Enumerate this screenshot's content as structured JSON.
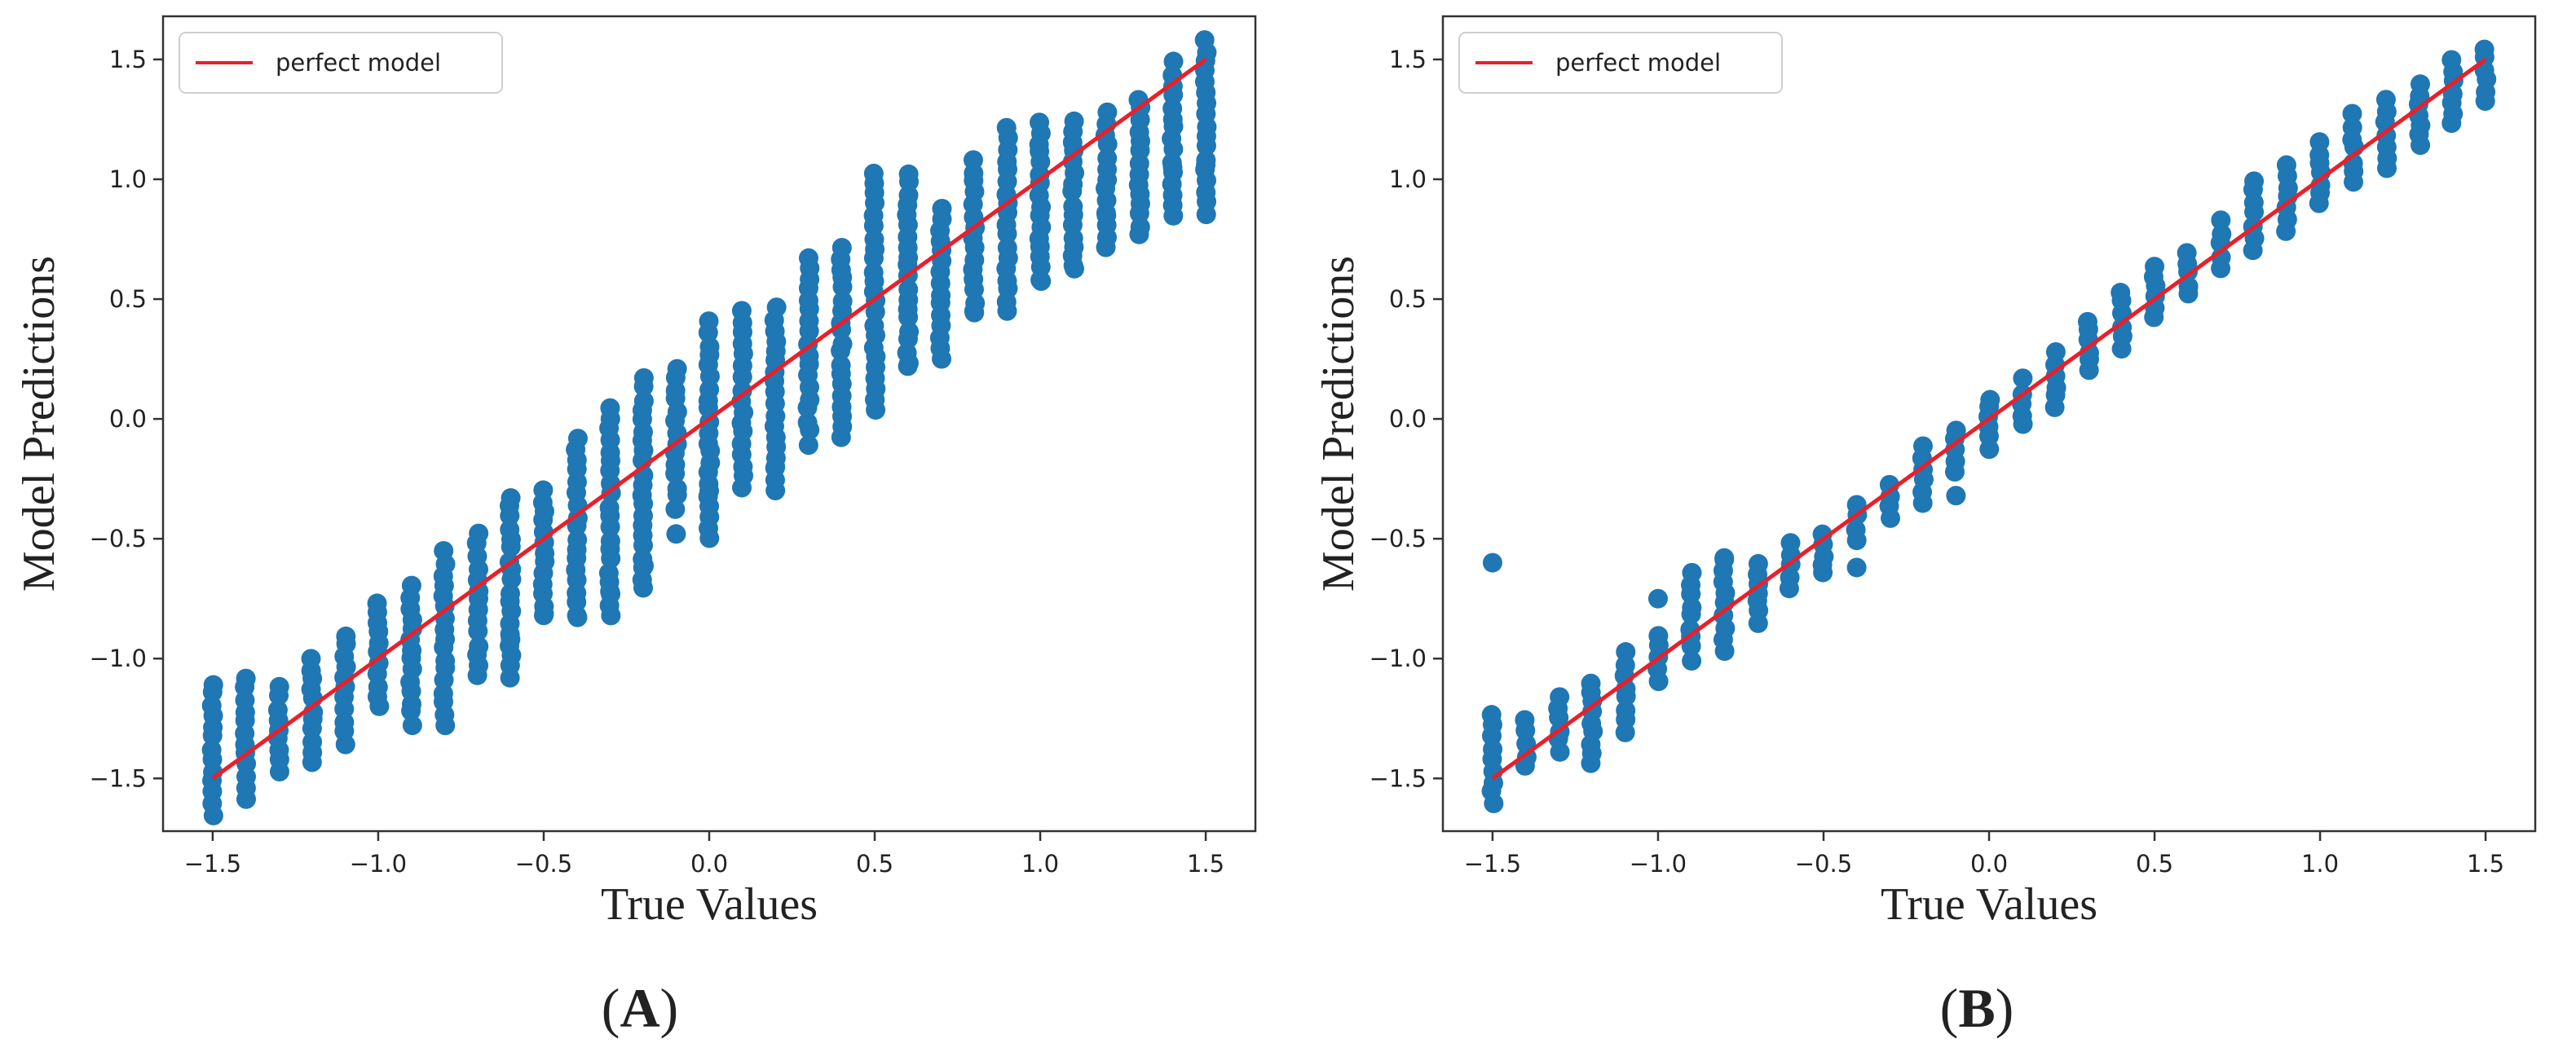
{
  "colors": {
    "points": "#1f77b4",
    "line": "#e8202a",
    "frame": "#333333"
  },
  "chart_data": [
    {
      "id": "A",
      "type": "scatter",
      "panel_label": "A",
      "xlabel": "True Values",
      "ylabel": "Model Predictions",
      "xlim": [
        -1.65,
        1.65
      ],
      "ylim": [
        -1.72,
        1.68
      ],
      "xticks": [
        -1.5,
        -1.0,
        -0.5,
        0.0,
        0.5,
        1.0,
        1.5
      ],
      "xtick_labels": [
        "−1.5",
        "−1.0",
        "−0.5",
        "0.0",
        "0.5",
        "1.0",
        "1.5"
      ],
      "yticks": [
        -1.5,
        -1.0,
        -0.5,
        0.0,
        0.5,
        1.0,
        1.5
      ],
      "ytick_labels": [
        "−1.5",
        "−1.0",
        "−0.5",
        "0.0",
        "0.5",
        "1.0",
        "1.5"
      ],
      "legend": {
        "label": "perfect model",
        "loc": "upper left"
      },
      "reference_line": {
        "name": "perfect model",
        "x": [
          -1.5,
          1.5
        ],
        "y": [
          -1.5,
          1.5
        ]
      },
      "series": [
        {
          "name": "predictions",
          "x_values": [
            -1.5,
            -1.4,
            -1.3,
            -1.2,
            -1.1,
            -1.0,
            -0.9,
            -0.8,
            -0.7,
            -0.6,
            -0.5,
            -0.4,
            -0.3,
            -0.2,
            -0.1,
            0.0,
            0.1,
            0.2,
            0.3,
            0.4,
            0.5,
            0.6,
            0.7,
            0.8,
            0.9,
            1.0,
            1.1,
            1.2,
            1.3,
            1.4,
            1.5
          ],
          "y_ranges": [
            [
              -1.65,
              -1.1
            ],
            [
              -1.58,
              -1.08
            ],
            [
              -1.47,
              -1.12
            ],
            [
              -1.43,
              -1.0
            ],
            [
              -1.35,
              -0.9
            ],
            [
              -1.2,
              -0.76
            ],
            [
              -1.27,
              -0.7
            ],
            [
              -1.27,
              -0.56
            ],
            [
              -1.08,
              -0.48
            ],
            [
              -1.08,
              -0.32
            ],
            [
              -0.82,
              -0.3
            ],
            [
              -0.82,
              -0.08
            ],
            [
              -0.82,
              0.05
            ],
            [
              -0.71,
              0.17
            ],
            [
              -0.37,
              0.21
            ],
            [
              -0.5,
              0.4
            ],
            [
              -0.29,
              0.45
            ],
            [
              -0.29,
              0.46
            ],
            [
              -0.1,
              0.68
            ],
            [
              -0.08,
              0.72
            ],
            [
              0.03,
              1.03
            ],
            [
              0.24,
              1.03
            ],
            [
              0.25,
              0.88
            ],
            [
              0.44,
              1.08
            ],
            [
              0.49,
              1.22
            ],
            [
              0.58,
              1.24
            ],
            [
              0.63,
              1.25
            ],
            [
              0.72,
              1.28
            ],
            [
              0.76,
              1.34
            ],
            [
              0.84,
              1.49
            ],
            [
              0.86,
              1.58
            ]
          ],
          "outliers": [
            [
              -0.6,
              -0.92
            ],
            [
              -0.5,
              -0.82
            ],
            [
              -0.4,
              -0.82
            ],
            [
              -0.3,
              -0.72
            ],
            [
              -0.2,
              -0.62
            ],
            [
              -0.1,
              -0.48
            ],
            [
              0.0,
              -0.3
            ],
            [
              0.2,
              -0.2
            ],
            [
              0.4,
              0.05
            ],
            [
              0.5,
              0.08
            ],
            [
              0.6,
              0.22
            ],
            [
              0.8,
              0.45
            ],
            [
              0.9,
              0.45
            ],
            [
              1.0,
              0.58
            ],
            [
              1.1,
              0.64
            ],
            [
              1.2,
              0.85
            ],
            [
              1.4,
              1.05
            ],
            [
              1.5,
              1.06
            ]
          ]
        }
      ]
    },
    {
      "id": "B",
      "type": "scatter",
      "panel_label": "B",
      "xlabel": "True Values",
      "ylabel": "Model Predictions",
      "xlim": [
        -1.65,
        1.65
      ],
      "ylim": [
        -1.72,
        1.68
      ],
      "xticks": [
        -1.5,
        -1.0,
        -0.5,
        0.0,
        0.5,
        1.0,
        1.5
      ],
      "xtick_labels": [
        "−1.5",
        "−1.0",
        "−0.5",
        "0.0",
        "0.5",
        "1.0",
        "1.5"
      ],
      "yticks": [
        -1.5,
        -1.0,
        -0.5,
        0.0,
        0.5,
        1.0,
        1.5
      ],
      "ytick_labels": [
        "−1.5",
        "−1.0",
        "−0.5",
        "0.0",
        "0.5",
        "1.0",
        "1.5"
      ],
      "legend": {
        "label": "perfect model",
        "loc": "upper left"
      },
      "reference_line": {
        "name": "perfect model",
        "x": [
          -1.5,
          1.5
        ],
        "y": [
          -1.5,
          1.5
        ]
      },
      "series": [
        {
          "name": "predictions",
          "x_values": [
            -1.5,
            -1.4,
            -1.3,
            -1.2,
            -1.1,
            -1.0,
            -0.9,
            -0.8,
            -0.7,
            -0.6,
            -0.5,
            -0.4,
            -0.3,
            -0.2,
            -0.1,
            0.0,
            0.1,
            0.2,
            0.3,
            0.4,
            0.5,
            0.6,
            0.7,
            0.8,
            0.9,
            1.0,
            1.1,
            1.2,
            1.3,
            1.4,
            1.5
          ],
          "y_ranges": [
            [
              -1.6,
              -1.24
            ],
            [
              -1.45,
              -1.26
            ],
            [
              -1.38,
              -1.17
            ],
            [
              -1.44,
              -1.1
            ],
            [
              -1.3,
              -0.98
            ],
            [
              -1.1,
              -0.9
            ],
            [
              -1.0,
              -0.65
            ],
            [
              -0.96,
              -0.58
            ],
            [
              -0.85,
              -0.6
            ],
            [
              -0.7,
              -0.52
            ],
            [
              -0.65,
              -0.48
            ],
            [
              -0.5,
              -0.36
            ],
            [
              -0.42,
              -0.27
            ],
            [
              -0.35,
              -0.12
            ],
            [
              -0.22,
              -0.04
            ],
            [
              -0.12,
              0.09
            ],
            [
              -0.03,
              0.16
            ],
            [
              0.05,
              0.27
            ],
            [
              0.2,
              0.41
            ],
            [
              0.3,
              0.53
            ],
            [
              0.43,
              0.64
            ],
            [
              0.52,
              0.69
            ],
            [
              0.63,
              0.82
            ],
            [
              0.71,
              1.0
            ],
            [
              0.79,
              1.05
            ],
            [
              0.9,
              1.15
            ],
            [
              0.98,
              1.27
            ],
            [
              1.04,
              1.33
            ],
            [
              1.14,
              1.4
            ],
            [
              1.23,
              1.49
            ],
            [
              1.33,
              1.55
            ]
          ],
          "outliers": [
            [
              -1.5,
              -0.6
            ],
            [
              -1.0,
              -0.75
            ],
            [
              -0.8,
              -0.58
            ],
            [
              -0.4,
              -0.62
            ],
            [
              -0.1,
              -0.32
            ]
          ]
        }
      ]
    }
  ]
}
